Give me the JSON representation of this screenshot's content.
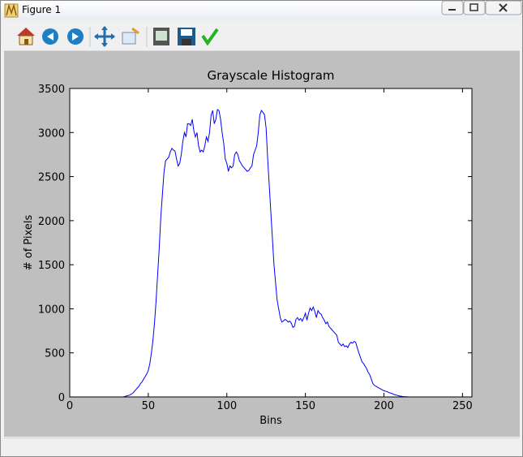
{
  "window": {
    "title": "Figure 1"
  },
  "chart_data": {
    "type": "line",
    "title": "Grayscale Histogram",
    "x_label": "Bins",
    "y_label": "# of Pixels",
    "x": [
      0,
      1,
      2,
      3,
      4,
      5,
      6,
      7,
      8,
      9,
      10,
      11,
      12,
      13,
      14,
      15,
      16,
      17,
      18,
      19,
      20,
      21,
      22,
      23,
      24,
      25,
      26,
      27,
      28,
      29,
      30,
      31,
      32,
      33,
      34,
      35,
      36,
      37,
      38,
      39,
      40,
      41,
      42,
      43,
      44,
      45,
      46,
      47,
      48,
      49,
      50,
      51,
      52,
      53,
      54,
      55,
      56,
      57,
      58,
      59,
      60,
      61,
      62,
      63,
      64,
      65,
      66,
      67,
      68,
      69,
      70,
      71,
      72,
      73,
      74,
      75,
      76,
      77,
      78,
      79,
      80,
      81,
      82,
      83,
      84,
      85,
      86,
      87,
      88,
      89,
      90,
      91,
      92,
      93,
      94,
      95,
      96,
      97,
      98,
      99,
      100,
      101,
      102,
      103,
      104,
      105,
      106,
      107,
      108,
      109,
      110,
      111,
      112,
      113,
      114,
      115,
      116,
      117,
      118,
      119,
      120,
      121,
      122,
      123,
      124,
      125,
      126,
      127,
      128,
      129,
      130,
      131,
      132,
      133,
      134,
      135,
      136,
      137,
      138,
      139,
      140,
      141,
      142,
      143,
      144,
      145,
      146,
      147,
      148,
      149,
      150,
      151,
      152,
      153,
      154,
      155,
      156,
      157,
      158,
      159,
      160,
      161,
      162,
      163,
      164,
      165,
      166,
      167,
      168,
      169,
      170,
      171,
      172,
      173,
      174,
      175,
      176,
      177,
      178,
      179,
      180,
      181,
      182,
      183,
      184,
      185,
      186,
      187,
      188,
      189,
      190,
      191,
      192,
      193,
      194,
      195,
      196,
      197,
      198,
      199,
      200,
      201,
      202,
      203,
      204,
      205,
      206,
      207,
      208,
      209,
      210,
      211,
      212,
      213,
      214,
      215,
      216,
      217,
      218,
      219,
      220,
      221,
      222,
      223,
      224,
      225,
      226,
      227,
      228,
      229,
      230,
      231,
      232,
      233,
      234,
      235,
      236,
      237,
      238,
      239,
      240,
      241,
      242,
      243,
      244,
      245,
      246,
      247,
      248,
      249,
      250,
      251,
      252,
      253,
      254,
      255
    ],
    "values": [
      0,
      0,
      0,
      0,
      0,
      0,
      0,
      0,
      0,
      0,
      0,
      0,
      0,
      0,
      0,
      0,
      0,
      0,
      0,
      0,
      0,
      0,
      0,
      0,
      0,
      0,
      0,
      0,
      0,
      0,
      0,
      0,
      0,
      0,
      0,
      5,
      10,
      15,
      20,
      30,
      40,
      60,
      80,
      100,
      120,
      150,
      170,
      200,
      230,
      260,
      300,
      380,
      500,
      650,
      850,
      1100,
      1400,
      1700,
      2050,
      2300,
      2550,
      2680,
      2700,
      2720,
      2780,
      2820,
      2800,
      2790,
      2700,
      2620,
      2650,
      2750,
      2900,
      3000,
      2950,
      3100,
      3100,
      3080,
      3150,
      3020,
      2950,
      3000,
      2850,
      2780,
      2800,
      2780,
      2850,
      2950,
      2900,
      3000,
      3200,
      3250,
      3100,
      3150,
      3260,
      3250,
      3150,
      3000,
      2880,
      2700,
      2650,
      2560,
      2620,
      2600,
      2620,
      2750,
      2780,
      2750,
      2680,
      2650,
      2620,
      2600,
      2580,
      2560,
      2570,
      2600,
      2620,
      2750,
      2800,
      2850,
      3000,
      3200,
      3250,
      3230,
      3200,
      3050,
      2700,
      2400,
      2100,
      1800,
      1500,
      1300,
      1100,
      1000,
      900,
      850,
      860,
      880,
      870,
      850,
      860,
      840,
      790,
      800,
      880,
      900,
      870,
      890,
      860,
      900,
      950,
      870,
      950,
      1010,
      980,
      1020,
      970,
      900,
      980,
      950,
      940,
      900,
      870,
      830,
      850,
      800,
      780,
      760,
      740,
      720,
      700,
      620,
      600,
      580,
      600,
      570,
      580,
      560,
      600,
      620,
      610,
      630,
      620,
      560,
      500,
      450,
      400,
      380,
      350,
      320,
      280,
      250,
      200,
      150,
      130,
      120,
      110,
      100,
      90,
      80,
      70,
      65,
      60,
      50,
      45,
      40,
      30,
      25,
      20,
      15,
      10,
      8,
      5,
      3,
      2,
      1,
      0,
      0,
      0,
      0,
      0,
      0,
      0,
      0,
      0,
      0,
      0,
      0,
      0,
      0,
      0,
      0,
      0,
      0,
      0,
      0,
      0,
      0,
      0,
      0,
      0,
      0,
      0,
      0,
      0,
      0,
      0,
      0,
      0,
      0,
      0,
      0,
      0,
      0,
      0,
      0
    ],
    "color": "#0000ff",
    "xlim": [
      0,
      256
    ],
    "xticks": [
      0,
      50,
      100,
      150,
      200,
      250
    ],
    "ylim": [
      0,
      3500
    ],
    "yticks": [
      0,
      500,
      1000,
      1500,
      2000,
      2500,
      3000,
      3500
    ]
  }
}
